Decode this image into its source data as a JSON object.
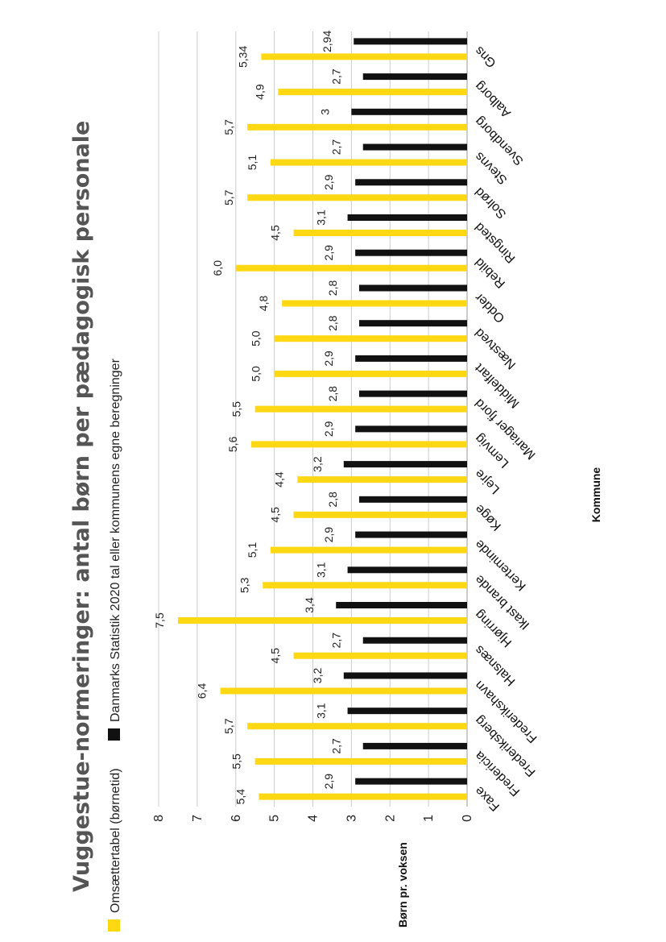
{
  "chart_data": {
    "type": "bar",
    "orientation": "vertical",
    "title": "Vuggestue-normeringer: antal børn per pædagogisk personale",
    "subtitle": "Omsættertabel (børnetid)",
    "xlabel": "Kommune",
    "ylabel": "Børn pr. voksen",
    "ylim": [
      0,
      8
    ],
    "yticks": [
      "0",
      "1",
      "2",
      "3",
      "4",
      "5",
      "6",
      "7",
      "8"
    ],
    "grid": true,
    "legend_placement": "top",
    "categories": [
      "Faxe",
      "Fredericia",
      "Frederiksberg",
      "Frederikshavn",
      "Halsnæs",
      "Hjørring",
      "Ikast brande",
      "Kerteminde",
      "Køge",
      "Lejre",
      "Lemvig",
      "Mariager fjord",
      "Middelfart",
      "Næstved",
      "Odder",
      "Rebild",
      "Ringsted",
      "Solrød",
      "Stevns",
      "Svendborg",
      "Aalborg",
      "Gns"
    ],
    "series": [
      {
        "name": "Omsættertabel (børnetid)",
        "color": "#FFD814",
        "values": [
          5.4,
          5.5,
          5.7,
          6.4,
          4.5,
          7.5,
          5.3,
          5.1,
          4.5,
          4.4,
          5.6,
          5.5,
          5.0,
          5.0,
          4.8,
          6.0,
          4.5,
          5.7,
          5.1,
          5.7,
          4.9,
          5.34
        ],
        "labels": [
          "5,4",
          "5,5",
          "5,7",
          "6,4",
          "4,5",
          "7,5",
          "5,3",
          "5,1",
          "4,5",
          "4,4",
          "5,6",
          "5,5",
          "5,0",
          "5,0",
          "4,8",
          "6,0",
          "4,5",
          "5,7",
          "5,1",
          "5,7",
          "4,9",
          "5,34"
        ]
      },
      {
        "name": "Danmarks Statistik 2020 tal eller kommunens egne beregninger",
        "color": "#111111",
        "values": [
          2.9,
          2.7,
          3.1,
          3.2,
          2.7,
          3.4,
          3.1,
          2.9,
          2.8,
          3.2,
          2.9,
          2.8,
          2.9,
          2.8,
          2.8,
          2.9,
          3.1,
          2.9,
          2.7,
          3.0,
          2.7,
          2.94
        ],
        "labels": [
          "2,9",
          "2,7",
          "3,1",
          "3,2",
          "2,7",
          "3,4",
          "3,1",
          "2,9",
          "2,8",
          "3,2",
          "2,9",
          "2,8",
          "2,9",
          "2,8",
          "2,8",
          "2,9",
          "3,1",
          "2,9",
          "2,7",
          "3",
          "2,7",
          "2,94"
        ]
      }
    ]
  }
}
